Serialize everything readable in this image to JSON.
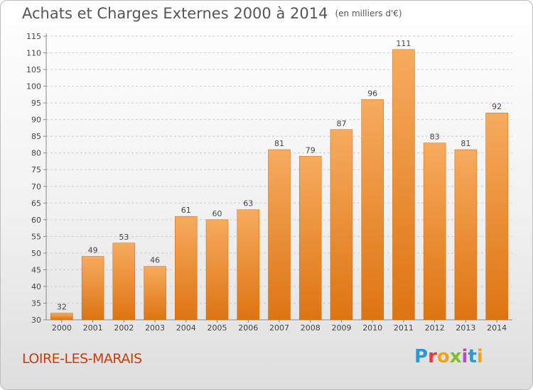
{
  "header": {
    "title": "Achats et Charges Externes 2000 à 2014",
    "unit": "(en milliers d'€)"
  },
  "footer": {
    "place": "LOIRE-LES-MARAIS",
    "logo_text": "Proxiti"
  },
  "colors": {
    "bar_light": "#f6ab5e",
    "bar_dark": "#de7412",
    "axis_text": "#444444",
    "title_text": "#555555",
    "place_text": "#cc3a0a",
    "grid": "#cccccc"
  },
  "chart_data": {
    "type": "bar",
    "title": "Achats et Charges Externes 2000 à 2014",
    "subtitle": "(en milliers d'€)",
    "xlabel": "",
    "ylabel": "",
    "categories": [
      "2000",
      "2001",
      "2002",
      "2003",
      "2004",
      "2005",
      "2006",
      "2007",
      "2008",
      "2009",
      "2010",
      "2011",
      "2012",
      "2013",
      "2014"
    ],
    "values": [
      32,
      49,
      53,
      46,
      61,
      60,
      63,
      81,
      79,
      87,
      96,
      111,
      83,
      81,
      92
    ],
    "ylim": [
      30,
      115
    ],
    "yticks": [
      30,
      35,
      40,
      45,
      50,
      55,
      60,
      65,
      70,
      75,
      80,
      85,
      90,
      95,
      100,
      105,
      110,
      115
    ],
    "grid": "horizontal dashed",
    "legend": "none",
    "data_labels": true
  }
}
